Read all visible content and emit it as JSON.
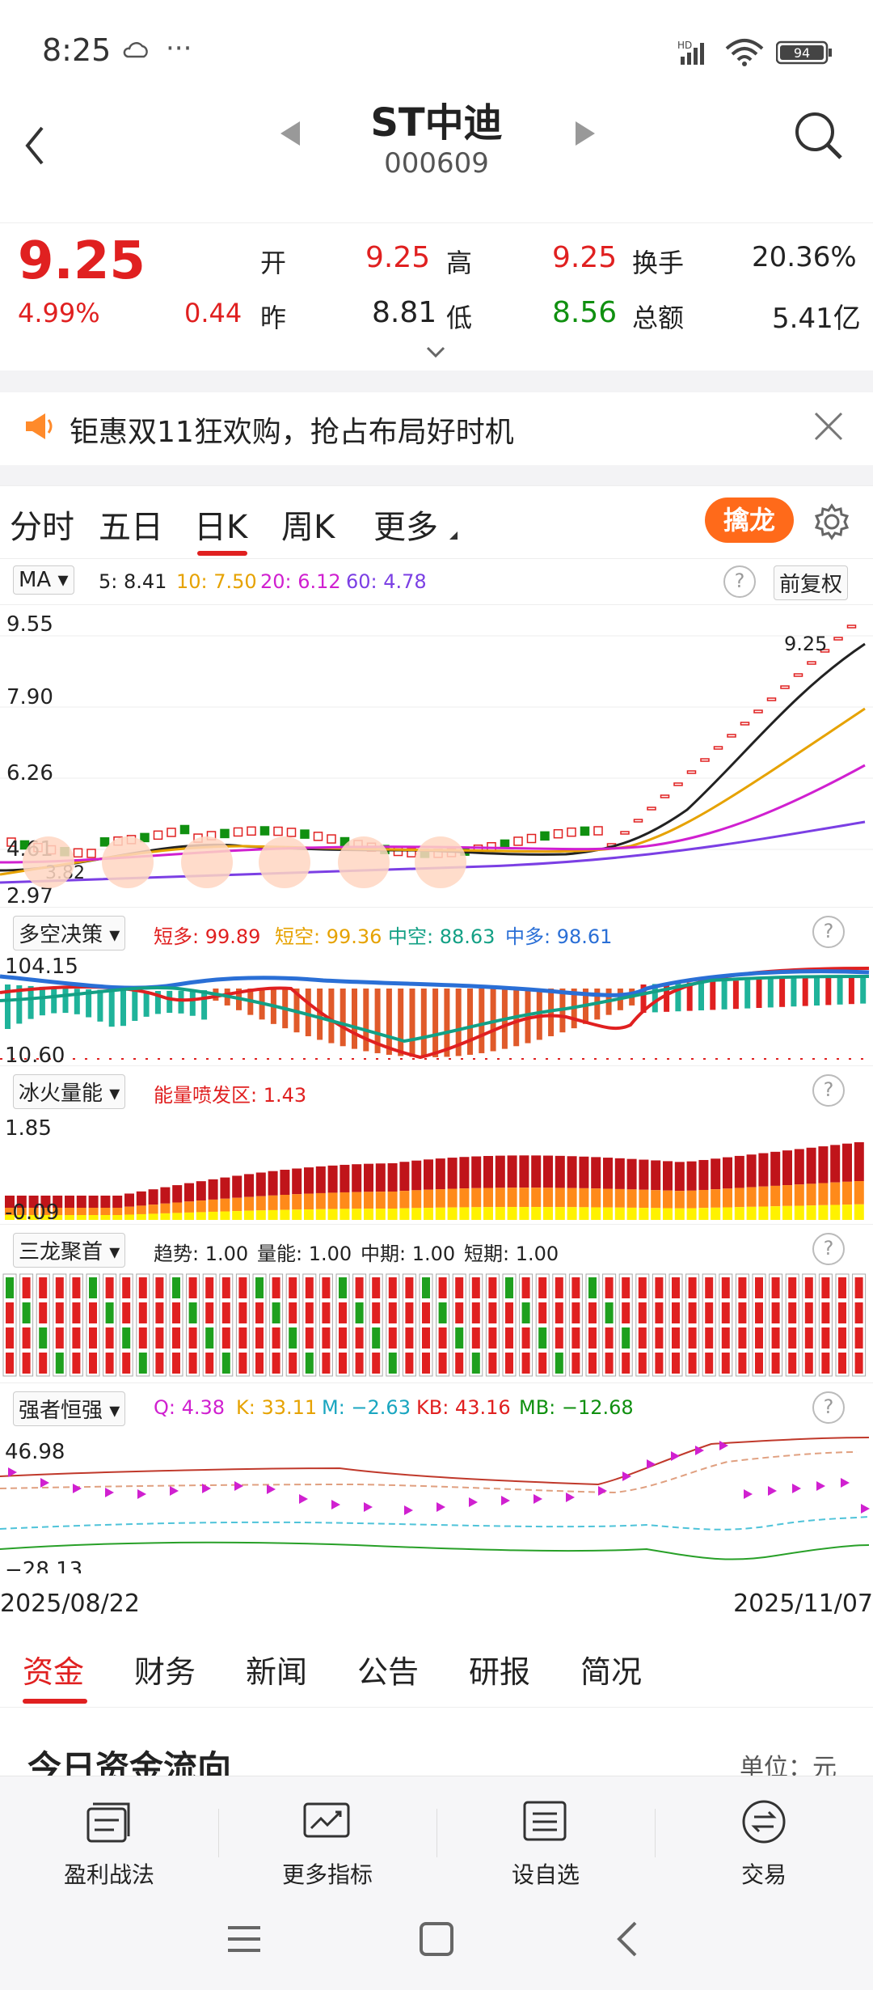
{
  "status_bar": {
    "time": "8:25",
    "cloud_icon": "cloud-icon",
    "more": "···",
    "network": "HD",
    "battery": "94"
  },
  "header": {
    "title": "ST中迪",
    "code": "000609"
  },
  "quote": {
    "price": "9.25",
    "change_pct": "4.99%",
    "change_amt": "0.44",
    "open_label": "开",
    "open_value": "9.25",
    "prev_label": "昨",
    "prev_value": "8.81",
    "high_label": "高",
    "high_value": "9.25",
    "low_label": "低",
    "low_value": "8.56",
    "turnover_label": "换手",
    "turnover_value": "20.36%",
    "amount_label": "总额",
    "amount_value": "5.41亿"
  },
  "banner": {
    "text": "钜惠双11狂欢购，抢占布局好时机"
  },
  "tabs": {
    "items": [
      "分时",
      "五日",
      "日K",
      "周K",
      "更多"
    ],
    "active": "日K",
    "qinlong": "擒龙"
  },
  "ma_panel": {
    "selector": "MA",
    "ma5": "5: 8.41",
    "ma10": "10: 7.50",
    "ma20": "20: 6.12",
    "ma60": "60: 4.78",
    "fuquan": "前复权",
    "y_ticks": [
      "9.55",
      "7.90",
      "6.26",
      "4.61",
      "2.97"
    ],
    "last_label": "9.25",
    "low_mark": "3.82"
  },
  "duokong": {
    "selector": "多空决策",
    "a": "短多: 99.89",
    "b": "短空: 99.36",
    "c": "中空: 88.63",
    "d": "中多: 98.61",
    "ymax": "104.15",
    "ymin": "10.60"
  },
  "binghuo": {
    "selector": "冰火量能",
    "a": "能量喷发区: 1.43",
    "ymax": "1.85",
    "ymin": "-0.09"
  },
  "sanlong": {
    "selector": "三龙聚首",
    "a": "趋势: 1.00",
    "b": "量能: 1.00",
    "c": "中期: 1.00",
    "d": "短期: 1.00"
  },
  "qiangzhe": {
    "selector": "强者恒强",
    "q": "Q: 4.38",
    "k": "K: 33.11",
    "m": "M: −2.63",
    "kb": "KB: 43.16",
    "mb": "MB: −12.68",
    "ymax": "46.98",
    "ymin": "−28.13"
  },
  "dates": {
    "start": "2025/08/22",
    "end": "2025/11/07"
  },
  "bottom_tabs": {
    "items": [
      "资金",
      "财务",
      "新闻",
      "公告",
      "研报",
      "简况"
    ],
    "active": "资金",
    "section_title": "今日资金流向",
    "unit": "单位：元"
  },
  "toolbar": {
    "items": [
      "盈利战法",
      "更多指标",
      "设自选",
      "交易"
    ]
  },
  "colors": {
    "red": "#e02020",
    "green": "#109010",
    "orange": "#ff6a1a",
    "purple": "#7b3fe4"
  }
}
